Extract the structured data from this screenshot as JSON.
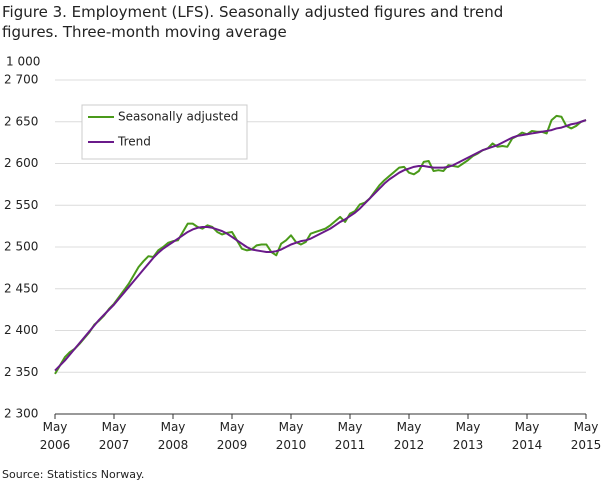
{
  "chart_data": {
    "type": "line",
    "title": "Figure 3. Employment (LFS). Seasonally adjusted figures and trend figures. Three-month moving average",
    "y_label": "1 000",
    "source": "Source: Statistics Norway.",
    "categories": [
      "May 2006",
      null,
      null,
      null,
      null,
      null,
      null,
      null,
      null,
      null,
      null,
      null,
      "May 2007",
      null,
      null,
      null,
      null,
      null,
      null,
      null,
      null,
      null,
      null,
      null,
      "May 2008",
      null,
      null,
      null,
      null,
      null,
      null,
      null,
      null,
      null,
      null,
      null,
      "May 2009",
      null,
      null,
      null,
      null,
      null,
      null,
      null,
      null,
      null,
      null,
      null,
      "May 2010",
      null,
      null,
      null,
      null,
      null,
      null,
      null,
      null,
      null,
      null,
      null,
      "May 2011",
      null,
      null,
      null,
      null,
      null,
      null,
      null,
      null,
      null,
      null,
      null,
      "May 2012",
      null,
      null,
      null,
      null,
      null,
      null,
      null,
      null,
      null,
      null,
      null,
      "May 2013",
      null,
      null,
      null,
      null,
      null,
      null,
      null,
      null,
      null,
      null,
      null,
      "May 2014",
      null,
      null,
      null,
      null,
      null,
      null,
      null,
      null,
      null,
      null,
      null,
      "May 2015"
    ],
    "series": [
      {
        "name": "Seasonally adjusted",
        "color": "#4a9a1a",
        "values": [
          2348,
          2358,
          2368,
          2374,
          2378,
          2384,
          2391,
          2398,
          2407,
          2412,
          2418,
          2426,
          2432,
          2440,
          2448,
          2456,
          2466,
          2476,
          2483,
          2489,
          2488,
          2496,
          2500,
          2505,
          2507,
          2508,
          2518,
          2528,
          2528,
          2524,
          2522,
          2526,
          2524,
          2518,
          2515,
          2517,
          2518,
          2508,
          2498,
          2496,
          2497,
          2502,
          2503,
          2503,
          2494,
          2490,
          2504,
          2508,
          2514,
          2506,
          2503,
          2506,
          2516,
          2518,
          2520,
          2522,
          2526,
          2531,
          2536,
          2530,
          2540,
          2543,
          2551,
          2553,
          2558,
          2566,
          2574,
          2580,
          2585,
          2590,
          2595,
          2596,
          2589,
          2587,
          2591,
          2602,
          2603,
          2591,
          2592,
          2591,
          2598,
          2597,
          2596,
          2600,
          2604,
          2609,
          2612,
          2616,
          2618,
          2624,
          2620,
          2621,
          2620,
          2630,
          2633,
          2637,
          2635,
          2639,
          2638,
          2638,
          2636,
          2652,
          2657,
          2656,
          2645,
          2642,
          2645,
          2650,
          2652
        ]
      },
      {
        "name": "Trend",
        "color": "#6a1a8a",
        "values": [
          2352,
          2358,
          2364,
          2371,
          2378,
          2385,
          2392,
          2399,
          2406,
          2413,
          2419,
          2425,
          2431,
          2438,
          2445,
          2452,
          2459,
          2466,
          2473,
          2480,
          2487,
          2493,
          2498,
          2502,
          2506,
          2510,
          2514,
          2518,
          2521,
          2523,
          2524,
          2524,
          2523,
          2521,
          2519,
          2516,
          2512,
          2508,
          2504,
          2500,
          2497,
          2496,
          2495,
          2494,
          2494,
          2495,
          2497,
          2500,
          2503,
          2505,
          2507,
          2508,
          2510,
          2513,
          2516,
          2519,
          2522,
          2526,
          2530,
          2533,
          2537,
          2541,
          2546,
          2552,
          2558,
          2564,
          2570,
          2576,
          2581,
          2585,
          2589,
          2592,
          2594,
          2596,
          2597,
          2597,
          2596,
          2595,
          2595,
          2595,
          2596,
          2598,
          2601,
          2604,
          2607,
          2610,
          2613,
          2616,
          2618,
          2620,
          2622,
          2625,
          2628,
          2631,
          2633,
          2634,
          2635,
          2636,
          2637,
          2638,
          2639,
          2640,
          2642,
          2643,
          2645,
          2647,
          2648,
          2650,
          2652
        ]
      }
    ],
    "ylim": [
      2300,
      2700
    ],
    "yticks": [
      {
        "value": 2300,
        "label": "2 300"
      },
      {
        "value": 2350,
        "label": "2 350"
      },
      {
        "value": 2400,
        "label": "2 400"
      },
      {
        "value": 2450,
        "label": "2 450"
      },
      {
        "value": 2500,
        "label": "2 500"
      },
      {
        "value": 2550,
        "label": "2 550"
      },
      {
        "value": 2600,
        "label": "2 600"
      },
      {
        "value": 2650,
        "label": "2 650"
      },
      {
        "value": 2700,
        "label": "2 700"
      }
    ],
    "grid": true,
    "legend": "upper left"
  }
}
